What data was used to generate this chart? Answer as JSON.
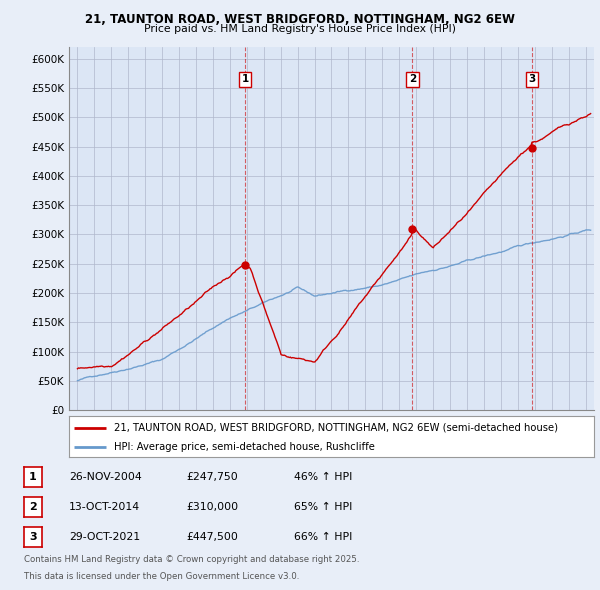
{
  "title_line1": "21, TAUNTON ROAD, WEST BRIDGFORD, NOTTINGHAM, NG2 6EW",
  "title_line2": "Price paid vs. HM Land Registry's House Price Index (HPI)",
  "ylabel_ticks": [
    "£0",
    "£50K",
    "£100K",
    "£150K",
    "£200K",
    "£250K",
    "£300K",
    "£350K",
    "£400K",
    "£450K",
    "£500K",
    "£550K",
    "£600K"
  ],
  "ytick_values": [
    0,
    50000,
    100000,
    150000,
    200000,
    250000,
    300000,
    350000,
    400000,
    450000,
    500000,
    550000,
    600000
  ],
  "xlim": [
    1994.5,
    2025.5
  ],
  "ylim": [
    0,
    620000
  ],
  "sale_dates": [
    2004.9,
    2014.78,
    2021.83
  ],
  "sale_prices": [
    247750,
    310000,
    447500
  ],
  "sale_labels": [
    "1",
    "2",
    "3"
  ],
  "vline_color": "#cc0000",
  "sale_marker_color": "#cc0000",
  "hpi_line_color": "#6699cc",
  "price_line_color": "#cc0000",
  "legend_label_price": "21, TAUNTON ROAD, WEST BRIDGFORD, NOTTINGHAM, NG2 6EW (semi-detached house)",
  "legend_label_hpi": "HPI: Average price, semi-detached house, Rushcliffe",
  "table_data": [
    [
      "1",
      "26-NOV-2004",
      "£247,750",
      "46% ↑ HPI"
    ],
    [
      "2",
      "13-OCT-2014",
      "£310,000",
      "65% ↑ HPI"
    ],
    [
      "3",
      "29-OCT-2021",
      "£447,500",
      "66% ↑ HPI"
    ]
  ],
  "footnote_line1": "Contains HM Land Registry data © Crown copyright and database right 2025.",
  "footnote_line2": "This data is licensed under the Open Government Licence v3.0.",
  "background_color": "#e8eef8",
  "plot_bg_color": "#dce6f5",
  "grid_color": "#b0b8cc"
}
